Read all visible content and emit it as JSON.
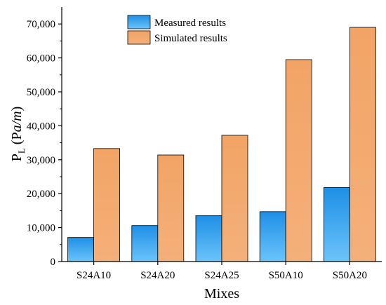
{
  "chart_data": {
    "type": "bar",
    "categories": [
      "S24A10",
      "S24A20",
      "S24A25",
      "S50A10",
      "S50A20"
    ],
    "series": [
      {
        "name": "Measured results",
        "values": [
          7100,
          10600,
          13500,
          14700,
          21800
        ],
        "color": "#3aa6f0"
      },
      {
        "name": "Simulated results",
        "values": [
          33300,
          31400,
          37200,
          59500,
          69000
        ],
        "color": "#f4a96b"
      }
    ],
    "xlabel": "Mixes",
    "ylabel_main": "P",
    "ylabel_sub": "L",
    "ylabel_unit_pre": " (P",
    "ylabel_unit_ital": "a/m",
    "ylabel_unit_post": ")",
    "ylim": [
      0,
      75000
    ],
    "yticks": [
      0,
      10000,
      20000,
      30000,
      40000,
      50000,
      60000,
      70000
    ],
    "ytick_labels": [
      "0",
      "10,000",
      "20,000",
      "30,000",
      "40,000",
      "50,000",
      "60,000",
      "70,000"
    ],
    "legend_position": "top-center",
    "grid": false
  }
}
